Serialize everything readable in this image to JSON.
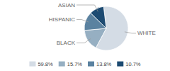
{
  "chart_data": {
    "type": "pie",
    "categories": [
      "WHITE",
      "BLACK",
      "HISPANIC",
      "ASIAN"
    ],
    "values": [
      59.8,
      15.7,
      13.8,
      10.7
    ],
    "value_labels": [
      "59.8%",
      "15.7%",
      "13.8%",
      "10.7%"
    ],
    "colors": [
      "#d4dce5",
      "#96afc2",
      "#5b82a0",
      "#1d4b72"
    ],
    "legend": "bottom"
  }
}
